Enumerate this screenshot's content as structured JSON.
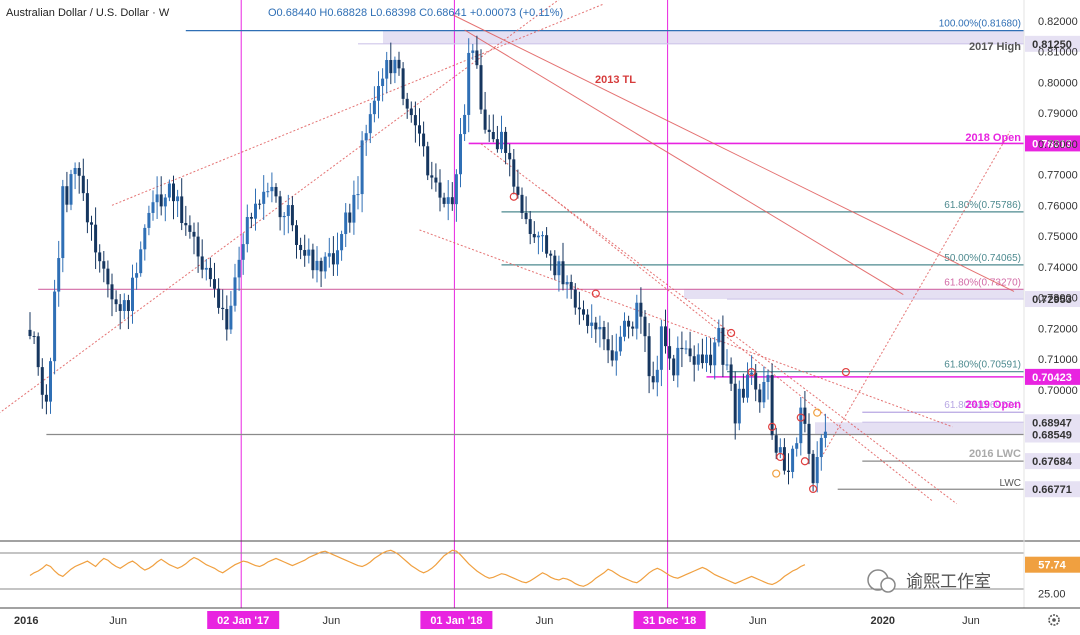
{
  "header": {
    "symbol": "Australian Dollar / U.S. Dollar · W",
    "ohlc": "O0.68440 H0.68828 L0.68398 C0.68641 +0.00073 (+0.11%)"
  },
  "watermark": {
    "text": "谕熙工作室"
  },
  "colors": {
    "up": "#2f6fb5",
    "down": "#16365f",
    "magenta": "#e824e0",
    "teal": "#4d8a8f",
    "grey": "#8a8a8a",
    "red_trend": "#e05a5a",
    "rsi": "#f0a040",
    "zone": "#dcd6ef"
  },
  "chart_data": [
    {
      "type": "candlestick",
      "title": "Australian Dollar / U.S. Dollar · W",
      "ylim": [
        0.6525,
        0.8235
      ],
      "y_ticks": [
        0.7,
        0.71,
        0.72,
        0.73,
        0.74,
        0.75,
        0.76,
        0.77,
        0.78,
        0.79,
        0.8,
        0.81,
        0.82
      ],
      "date_ticks": [
        {
          "label": "2016",
          "x": 0,
          "style": "bold"
        },
        {
          "label": "Jun",
          "x": 21.5,
          "style": "plain"
        },
        {
          "label": "02 Jan '17",
          "x": 52,
          "style": "badge"
        },
        {
          "label": "Jun",
          "x": 73.5,
          "style": "plain"
        },
        {
          "label": "01 Jan '18",
          "x": 104,
          "style": "badge"
        },
        {
          "label": "Jun",
          "x": 125.5,
          "style": "plain"
        },
        {
          "label": "31 Dec '18",
          "x": 156,
          "style": "badge"
        },
        {
          "label": "Jun",
          "x": 177.5,
          "style": "plain"
        },
        {
          "label": "2020",
          "x": 208,
          "style": "bold"
        },
        {
          "label": "Jun",
          "x": 229.5,
          "style": "plain"
        }
      ],
      "anchors": [
        [
          0,
          0.722
        ],
        [
          4,
          0.694
        ],
        [
          8,
          0.762
        ],
        [
          12,
          0.772
        ],
        [
          16,
          0.745
        ],
        [
          20,
          0.732
        ],
        [
          24,
          0.725
        ],
        [
          28,
          0.756
        ],
        [
          32,
          0.764
        ],
        [
          36,
          0.762
        ],
        [
          40,
          0.748
        ],
        [
          44,
          0.735
        ],
        [
          48,
          0.718
        ],
        [
          51,
          0.746
        ],
        [
          55,
          0.762
        ],
        [
          59,
          0.763
        ],
        [
          63,
          0.758
        ],
        [
          66,
          0.748
        ],
        [
          70,
          0.738
        ],
        [
          74,
          0.742
        ],
        [
          78,
          0.758
        ],
        [
          80,
          0.768
        ],
        [
          82,
          0.787
        ],
        [
          85,
          0.802
        ],
        [
          88,
          0.807
        ],
        [
          90,
          0.805
        ],
        [
          92,
          0.792
        ],
        [
          96,
          0.778
        ],
        [
          99,
          0.765
        ],
        [
          101,
          0.758
        ],
        [
          104,
          0.768
        ],
        [
          106,
          0.791
        ],
        [
          107,
          0.808
        ],
        [
          108,
          0.811
        ],
        [
          110,
          0.792
        ],
        [
          113,
          0.783
        ],
        [
          116,
          0.778
        ],
        [
          118,
          0.768
        ],
        [
          120,
          0.758
        ],
        [
          122,
          0.748
        ],
        [
          124,
          0.753
        ],
        [
          126,
          0.745
        ],
        [
          128,
          0.738
        ],
        [
          130,
          0.738
        ],
        [
          132,
          0.736
        ],
        [
          134,
          0.724
        ],
        [
          137,
          0.723
        ],
        [
          140,
          0.715
        ],
        [
          143,
          0.709
        ],
        [
          145,
          0.722
        ],
        [
          148,
          0.725
        ],
        [
          151,
          0.708
        ],
        [
          152,
          0.703
        ],
        [
          154,
          0.718
        ],
        [
          156,
          0.708
        ],
        [
          157,
          0.705
        ],
        [
          158,
          0.718
        ],
        [
          160,
          0.714
        ],
        [
          162,
          0.708
        ],
        [
          164,
          0.707
        ],
        [
          166,
          0.712
        ],
        [
          168,
          0.716
        ],
        [
          170,
          0.705
        ],
        [
          172,
          0.692
        ],
        [
          174,
          0.7
        ],
        [
          176,
          0.704
        ],
        [
          178,
          0.697
        ],
        [
          180,
          0.703
        ],
        [
          181,
          0.687
        ],
        [
          183,
          0.679
        ],
        [
          185,
          0.673
        ],
        [
          186,
          0.678
        ],
        [
          187,
          0.683
        ],
        [
          188,
          0.69
        ],
        [
          189,
          0.686
        ],
        [
          190,
          0.678
        ],
        [
          191,
          0.672
        ],
        [
          192,
          0.674
        ],
        [
          193,
          0.684
        ],
        [
          194,
          0.686
        ]
      ],
      "last_close": 0.68641
    },
    {
      "type": "line",
      "title": "RSI",
      "ylim": [
        20,
        80
      ],
      "values_note": "oscillator",
      "ticks": [
        {
          "value": 25,
          "label": "25.00"
        }
      ],
      "last_value_label": "57.74",
      "series_values": [
        45,
        48,
        50,
        53,
        57,
        55,
        50,
        46,
        44,
        48,
        52,
        55,
        57,
        59,
        61,
        58,
        55,
        60,
        64,
        62,
        58,
        55,
        53,
        56,
        59,
        61,
        58,
        54,
        51,
        53,
        56,
        60,
        63,
        60,
        57,
        55,
        53,
        55,
        58,
        62,
        65,
        63,
        60,
        57,
        55,
        53,
        50,
        48,
        51,
        54,
        57,
        59,
        61,
        60,
        58,
        56,
        55,
        57,
        60,
        62,
        64,
        62,
        60,
        58,
        56,
        58,
        60,
        62,
        65,
        67,
        69,
        71,
        72,
        70,
        68,
        66,
        64,
        62,
        60,
        58,
        56,
        55,
        57,
        60,
        64,
        67,
        70,
        72,
        73,
        71,
        68,
        64,
        60,
        56,
        53,
        50,
        48,
        50,
        53,
        57,
        62,
        67,
        70,
        73,
        72,
        68,
        63,
        58,
        54,
        50,
        47,
        44,
        42,
        43,
        45,
        47,
        46,
        44,
        42,
        40,
        38,
        37,
        39,
        42,
        45,
        48,
        46,
        43,
        41,
        40,
        42,
        41,
        39,
        36,
        34,
        33,
        35,
        38,
        42,
        45,
        48,
        52,
        50,
        47,
        44,
        42,
        40,
        38,
        37,
        40,
        44,
        48,
        51,
        53,
        51,
        48,
        45,
        43,
        42,
        44,
        46,
        48,
        50,
        52,
        54,
        52,
        49,
        46,
        44,
        42,
        40,
        38,
        36,
        38,
        40,
        42,
        44,
        42,
        40,
        38,
        36,
        35,
        37,
        40,
        44,
        47,
        50,
        52,
        55,
        57
      ]
    }
  ],
  "levels": [
    {
      "value": 0.8168,
      "label": "100.00%(0.81680)",
      "color": "#2f6fb5",
      "x_from": 38
    },
    {
      "value": 0.8125,
      "label": "0.81250",
      "color": "#cfc6ea",
      "x_from": 80,
      "badge": true,
      "badge_bg": "#e6e1f3",
      "badge_fg": "#333333"
    },
    {
      "value": 0.78013,
      "label": "0.78013",
      "color": "#e824e0",
      "x_from": 107,
      "badge": true,
      "badge_bg": "#e824e0",
      "badge_fg": "#ffffff"
    },
    {
      "value": 0.75786,
      "label": "61.80%(0.75786)",
      "color": "#4d8a8f",
      "x_from": 115
    },
    {
      "value": 0.74065,
      "label": "50.00%(0.74065)",
      "color": "#4d8a8f",
      "x_from": 115
    },
    {
      "value": 0.7327,
      "label": "61.80%(0.73270)",
      "color": "#d26aa6",
      "x_from": 2
    },
    {
      "value": 0.72953,
      "label": "0.72953",
      "color": "#cfc6ea",
      "x_from": 170,
      "badge": true,
      "badge_bg": "#e6e1f3",
      "badge_fg": "#333333"
    },
    {
      "value": 0.70591,
      "label": "61.80%(0.70591)",
      "color": "#4d8a8f",
      "x_from": 170
    },
    {
      "value": 0.70423,
      "label": "0.70423",
      "color": "#e824e0",
      "x_from": 165,
      "badge": true,
      "badge_bg": "#e824e0",
      "badge_fg": "#ffffff"
    },
    {
      "value": 0.69274,
      "label": "61.80%(0.69274)",
      "color": "#b7a6e3",
      "x_from": 203
    },
    {
      "value": 0.68947,
      "label": "0.68947",
      "color": "#cfc6ea",
      "x_from": 203,
      "badge": true,
      "badge_bg": "#e6e1f3",
      "badge_fg": "#333333"
    },
    {
      "value": 0.68549,
      "label": "0.68549",
      "color": "#8a8a8a",
      "x_from": 4,
      "badge": true,
      "badge_bg": "#e6e1f3",
      "badge_fg": "#333333"
    },
    {
      "value": 0.67684,
      "label": "0.67684",
      "color": "#8a8a8a",
      "x_from": 203,
      "badge": true,
      "badge_bg": "#e6e1f3",
      "badge_fg": "#333333"
    },
    {
      "value": 0.66771,
      "label": "0.66771",
      "color": "#8a8a8a",
      "x_from": 197,
      "badge": true,
      "badge_bg": "#e6e1f3",
      "badge_fg": "#333333"
    }
  ],
  "labels": {
    "tl_2013": "2013 TL",
    "high_2017": "2017 High",
    "open_2018": "2018 Open",
    "open_2019": "2019 Open",
    "lwc_2016": "2016 LWC",
    "lwc": "LWC"
  },
  "toolbar": {
    "settings_icon": "gear-icon"
  }
}
